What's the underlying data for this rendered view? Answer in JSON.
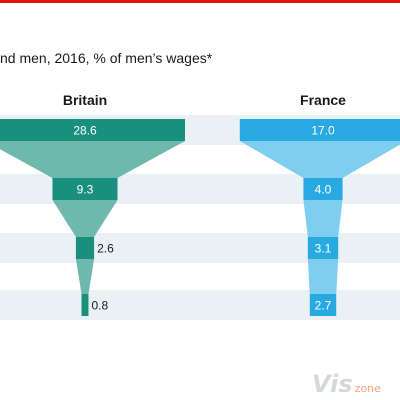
{
  "header": {
    "subtitle": "nd men, 2016, % of men’s wages*"
  },
  "colors": {
    "britain": "#1a8f7e",
    "britain_funnel": "#6fb8ad",
    "france": "#29a9e1",
    "france_funnel": "#7fcef0",
    "band": "#eaf1f5",
    "accent_rule": "#e3120b"
  },
  "watermark": {
    "main": "Vis",
    "suffix": "zone"
  },
  "chart_data": {
    "type": "bar",
    "title": "",
    "xlabel": "",
    "ylabel": "",
    "panels": [
      {
        "name": "Britain",
        "values": [
          28.6,
          9.3,
          2.6,
          0.8
        ]
      },
      {
        "name": "France",
        "values": [
          17.0,
          4.0,
          3.1,
          2.7
        ]
      }
    ],
    "labels": {
      "Britain": [
        "28.6",
        "9.3",
        "2.6",
        "0.8"
      ],
      "France": [
        "17.0",
        "4.0",
        "3.1",
        "2.7"
      ]
    },
    "legend": "none",
    "grid": false
  }
}
